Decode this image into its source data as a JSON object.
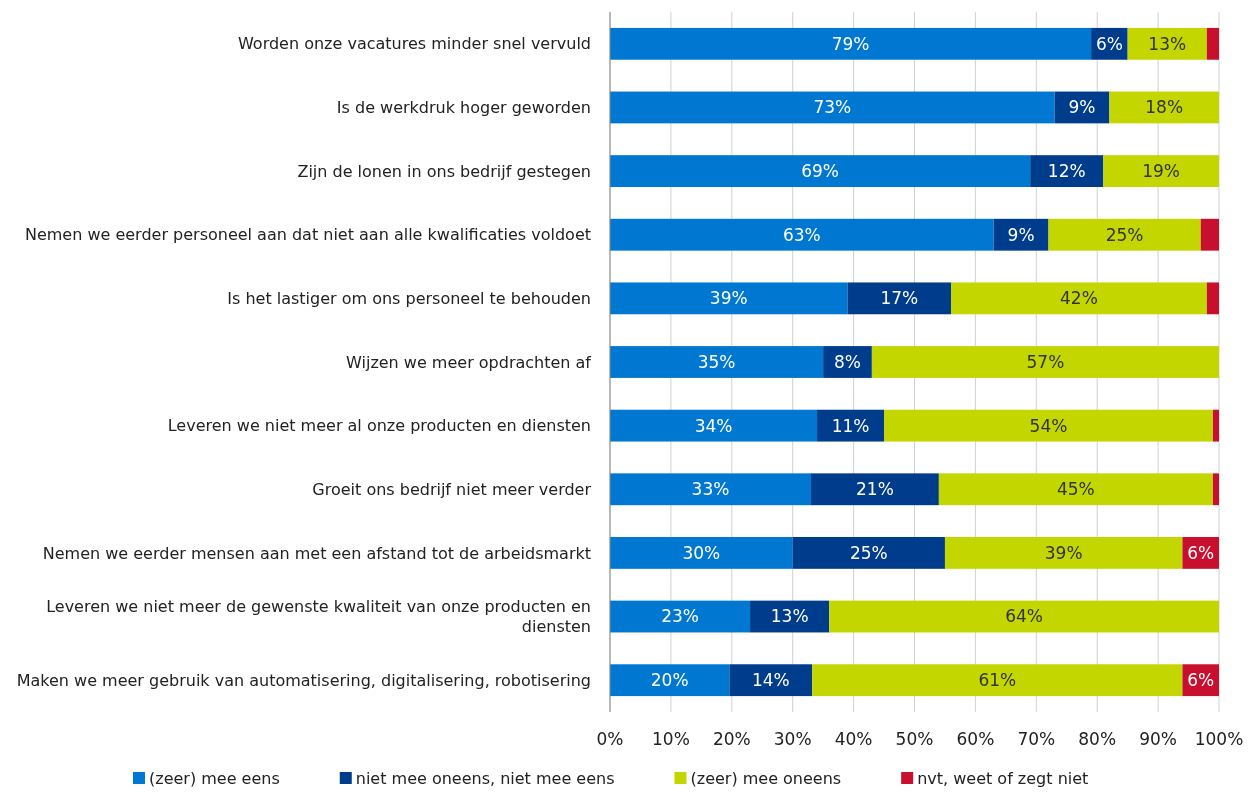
{
  "chart_data": {
    "type": "bar",
    "orientation": "horizontal",
    "stacked": true,
    "categories": [
      "Worden onze vacatures minder snel vervuld",
      "Is de werkdruk hoger geworden",
      "Zijn de lonen in ons bedrijf gestegen",
      "Nemen we eerder personeel aan dat niet aan alle kwalificaties voldoet",
      "Is het lastiger om ons personeel te behouden",
      "Wijzen we meer opdrachten af",
      "Leveren we niet meer al onze producten en diensten",
      "Groeit ons bedrijf niet meer verder",
      "Nemen we eerder mensen aan met een afstand tot de arbeidsmarkt",
      "Leveren we niet meer de gewenste kwaliteit van onze producten en diensten",
      "Maken we meer gebruik van automatisering, digitalisering, robotisering"
    ],
    "series": [
      {
        "name": "(zeer) mee eens",
        "color": "#0078d2",
        "values": [
          79,
          73,
          69,
          63,
          39,
          35,
          34,
          33,
          30,
          23,
          19.6
        ],
        "value_labels": [
          "79%",
          "73%",
          "69%",
          "63%",
          "39%",
          "35%",
          "34%",
          "33%",
          "30%",
          "23%",
          "20%"
        ]
      },
      {
        "name": "niet mee oneens, niet mee eens",
        "color": "#003c8c",
        "values": [
          6,
          9,
          12,
          9,
          17,
          8,
          11,
          21,
          25,
          13,
          13.6
        ],
        "value_labels": [
          "6%",
          "9%",
          "12%",
          "9%",
          "17%",
          "8%",
          "11%",
          "21%",
          "25%",
          "13%",
          "14%"
        ]
      },
      {
        "name": "(zeer) mee oneens",
        "color": "#c3d600",
        "values": [
          13,
          18,
          19,
          25,
          42,
          57,
          54,
          45,
          39,
          64,
          60.8
        ],
        "value_labels": [
          "13%",
          "18%",
          "19%",
          "25%",
          "42%",
          "57%",
          "54%",
          "45%",
          "39%",
          "64%",
          "61%"
        ]
      },
      {
        "name": "nvt, weet of zegt niet",
        "color": "#c8102e",
        "values": [
          2,
          0,
          0,
          3,
          2,
          0,
          1,
          1,
          6,
          0,
          6
        ],
        "value_labels": [
          null,
          null,
          null,
          null,
          null,
          null,
          null,
          null,
          "6%",
          null,
          "6%"
        ]
      }
    ],
    "xlim": [
      0,
      100
    ],
    "xticks": [
      {
        "value": 0,
        "label": "0%"
      },
      {
        "value": 10,
        "label": "10%"
      },
      {
        "value": 20,
        "label": "20%"
      },
      {
        "value": 30,
        "label": "30%"
      },
      {
        "value": 40,
        "label": "40%"
      },
      {
        "value": 50,
        "label": "50%"
      },
      {
        "value": 60,
        "label": "60%"
      },
      {
        "value": 70,
        "label": "70%"
      },
      {
        "value": 80,
        "label": "80%"
      },
      {
        "value": 90,
        "label": "90%"
      },
      {
        "value": 100,
        "label": "100%"
      }
    ],
    "grid": "x",
    "legend": "bottom"
  }
}
